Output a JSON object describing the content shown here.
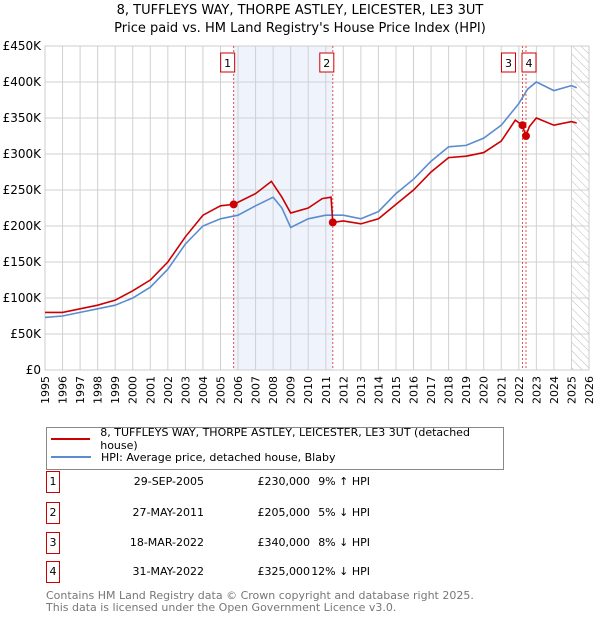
{
  "title": "8, TUFFLEYS WAY, THORPE ASTLEY, LEICESTER, LE3 3UT",
  "subtitle": "Price paid vs. HM Land Registry's House Price Index (HPI)",
  "chart_data": {
    "type": "line",
    "xlim": [
      1995,
      2026
    ],
    "ylim": [
      0,
      450000
    ],
    "x_ticks": [
      "1995",
      "1996",
      "1997",
      "1998",
      "1999",
      "2000",
      "2001",
      "2002",
      "2003",
      "2004",
      "2005",
      "2006",
      "2007",
      "2008",
      "2009",
      "2010",
      "2011",
      "2012",
      "2013",
      "2014",
      "2015",
      "2016",
      "2017",
      "2018",
      "2019",
      "2020",
      "2021",
      "2022",
      "2023",
      "2024",
      "2025",
      "2026"
    ],
    "y_ticks": [
      {
        "v": 0,
        "l": "£0"
      },
      {
        "v": 50000,
        "l": "£50K"
      },
      {
        "v": 100000,
        "l": "£100K"
      },
      {
        "v": 150000,
        "l": "£150K"
      },
      {
        "v": 200000,
        "l": "£200K"
      },
      {
        "v": 250000,
        "l": "£250K"
      },
      {
        "v": 300000,
        "l": "£300K"
      },
      {
        "v": 350000,
        "l": "£350K"
      },
      {
        "v": 400000,
        "l": "£400K"
      },
      {
        "v": 450000,
        "l": "£450K"
      }
    ],
    "series": [
      {
        "name": "8, TUFFLEYS WAY, THORPE ASTLEY, LEICESTER, LE3 3UT (detached house)",
        "color": "#cc0000",
        "x": [
          1995,
          1996,
          1997,
          1998,
          1999,
          2000,
          2001,
          2002,
          2003,
          2004,
          2005,
          2005.75,
          2006,
          2007,
          2007.9,
          2008.5,
          2009,
          2010,
          2010.8,
          2011.3,
          2011.4,
          2012,
          2013,
          2014,
          2015,
          2016,
          2017,
          2018,
          2019,
          2020,
          2021,
          2021.8,
          2022.2,
          2022.4,
          2022.6,
          2023,
          2024,
          2025,
          2025.3
        ],
        "y": [
          80000,
          80000,
          85000,
          90000,
          97000,
          110000,
          125000,
          150000,
          185000,
          215000,
          228000,
          230000,
          233000,
          245000,
          262000,
          240000,
          218000,
          225000,
          238000,
          240000,
          205000,
          207000,
          203000,
          210000,
          230000,
          250000,
          275000,
          295000,
          297000,
          302000,
          318000,
          347000,
          340000,
          325000,
          338000,
          350000,
          340000,
          345000,
          343000
        ]
      },
      {
        "name": "HPI: Average price, detached house, Blaby",
        "color": "#5b8ccf",
        "x": [
          1995,
          1996,
          1997,
          1998,
          1999,
          2000,
          2001,
          2002,
          2003,
          2004,
          2005,
          2006,
          2007,
          2008,
          2008.5,
          2009,
          2010,
          2011,
          2012,
          2013,
          2014,
          2015,
          2016,
          2017,
          2018,
          2019,
          2020,
          2021,
          2022,
          2022.5,
          2023,
          2024,
          2025,
          2025.3
        ],
        "y": [
          73000,
          75000,
          80000,
          85000,
          90000,
          100000,
          115000,
          140000,
          175000,
          200000,
          210000,
          215000,
          228000,
          240000,
          225000,
          198000,
          210000,
          215000,
          215000,
          210000,
          220000,
          245000,
          265000,
          290000,
          310000,
          312000,
          322000,
          340000,
          370000,
          390000,
          400000,
          388000,
          395000,
          392000
        ]
      }
    ],
    "sales": [
      {
        "n": "1",
        "x": 2005.75,
        "y": 230000,
        "date": "29-SEP-2005",
        "price": "£230,000",
        "hpi": "9% ↑ HPI"
      },
      {
        "n": "2",
        "x": 2011.4,
        "y": 205000,
        "date": "27-MAY-2011",
        "price": "£205,000",
        "hpi": "5% ↓ HPI"
      },
      {
        "n": "3",
        "x": 2022.21,
        "y": 340000,
        "date": "18-MAR-2022",
        "price": "£340,000",
        "hpi": "8% ↓ HPI"
      },
      {
        "n": "4",
        "x": 2022.41,
        "y": 325000,
        "date": "31-MAY-2022",
        "price": "£325,000",
        "hpi": "12% ↓ HPI"
      }
    ],
    "shaded_range": [
      2005.75,
      2011.4
    ],
    "forecast_from": 2025.0
  },
  "footer": [
    "Contains HM Land Registry data © Crown copyright and database right 2025.",
    "This data is licensed under the Open Government Licence v3.0."
  ]
}
